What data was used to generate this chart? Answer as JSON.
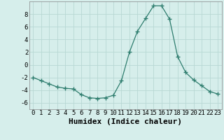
{
  "x": [
    0,
    1,
    2,
    3,
    4,
    5,
    6,
    7,
    8,
    9,
    10,
    11,
    12,
    13,
    14,
    15,
    16,
    17,
    18,
    19,
    20,
    21,
    22,
    23
  ],
  "y": [
    -2.0,
    -2.5,
    -3.0,
    -3.5,
    -3.7,
    -3.8,
    -4.7,
    -5.2,
    -5.3,
    -5.2,
    -4.8,
    -2.5,
    2.0,
    5.3,
    7.3,
    9.3,
    9.3,
    7.2,
    1.3,
    -1.2,
    -2.4,
    -3.3,
    -4.2,
    -4.6
  ],
  "xlabel": "Humidex (Indice chaleur)",
  "ylim": [
    -7,
    10
  ],
  "xlim": [
    -0.5,
    23.5
  ],
  "yticks": [
    -6,
    -4,
    -2,
    0,
    2,
    4,
    6,
    8
  ],
  "xticks": [
    0,
    1,
    2,
    3,
    4,
    5,
    6,
    7,
    8,
    9,
    10,
    11,
    12,
    13,
    14,
    15,
    16,
    17,
    18,
    19,
    20,
    21,
    22,
    23
  ],
  "line_color": "#2e7d6e",
  "marker_color": "#2e7d6e",
  "bg_color": "#d6eeeb",
  "grid_color": "#b8d8d4",
  "xlabel_fontsize": 8,
  "tick_fontsize": 6.5
}
